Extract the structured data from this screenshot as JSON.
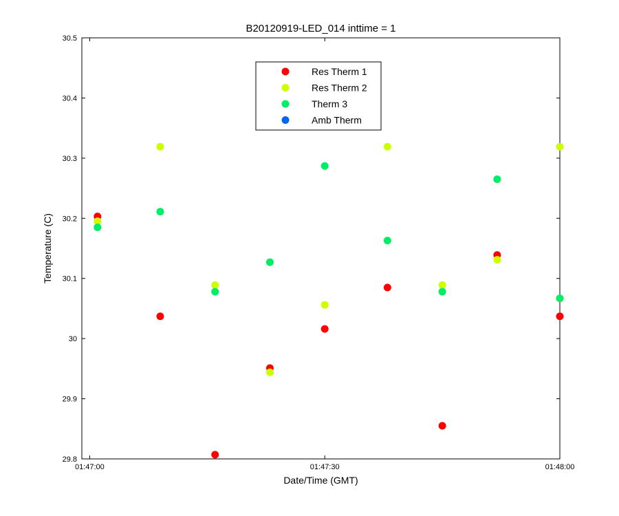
{
  "chart_data": {
    "type": "scatter",
    "title": "B20120919-LED_014 inttime = 1",
    "xlabel": "Date/Time (GMT)",
    "ylabel": "Temperature (C)",
    "x_unit": "time",
    "xlim": [
      "01:46:59",
      "01:48:00"
    ],
    "ylim": [
      29.8,
      30.5
    ],
    "x_ticks": [
      "01:47:00",
      "01:47:30",
      "01:48:00"
    ],
    "y_ticks": [
      "29.8",
      "29.9",
      "30",
      "30.1",
      "30.2",
      "30.3",
      "30.4",
      "30.5"
    ],
    "grid": false,
    "legend_position": "top-center",
    "series": [
      {
        "name": "Res Therm 1",
        "color": "#ff0000",
        "x": [
          "01:47:01",
          "01:47:09",
          "01:47:16",
          "01:47:23",
          "01:47:30",
          "01:47:38",
          "01:47:45",
          "01:47:52",
          "01:48:00"
        ],
        "y": [
          30.203,
          30.037,
          29.807,
          29.951,
          30.016,
          30.085,
          29.855,
          30.139,
          30.037
        ]
      },
      {
        "name": "Res Therm 2",
        "color": "#ccff00",
        "x": [
          "01:47:01",
          "01:47:09",
          "01:47:16",
          "01:47:23",
          "01:47:30",
          "01:47:38",
          "01:47:45",
          "01:47:52",
          "01:48:00"
        ],
        "y": [
          30.195,
          30.319,
          30.089,
          29.944,
          30.056,
          30.319,
          30.089,
          30.131,
          30.319
        ]
      },
      {
        "name": "Therm 3",
        "color": "#00ee66",
        "x": [
          "01:47:01",
          "01:47:09",
          "01:47:16",
          "01:47:23",
          "01:47:30",
          "01:47:38",
          "01:47:45",
          "01:47:52",
          "01:48:00"
        ],
        "y": [
          30.185,
          30.211,
          30.078,
          30.127,
          30.287,
          30.163,
          30.078,
          30.265,
          30.067
        ]
      },
      {
        "name": "Amb Therm",
        "color": "#0066ee",
        "x": [],
        "y": []
      }
    ]
  }
}
